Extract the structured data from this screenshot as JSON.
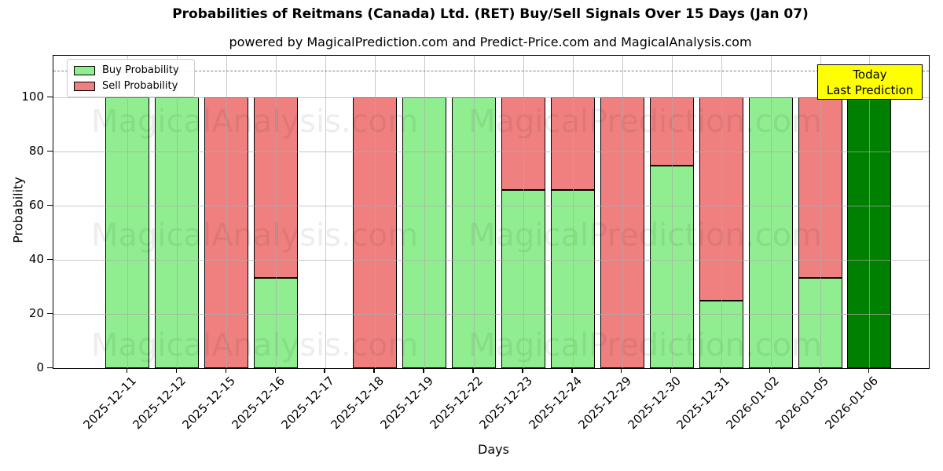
{
  "annotation": {
    "line1": "Today",
    "line2": "Last Prediction",
    "bg_color": "#ffff00"
  },
  "watermarks": {
    "left_text": "MagicalAnalysis.com",
    "right_text": "MagicalPrediction.com"
  },
  "chart_data": {
    "type": "bar",
    "stacked": true,
    "title": "Probabilities of Reitmans (Canada) Ltd. (RET) Buy/Sell Signals Over 15 Days (Jan 07)",
    "subtitle": "powered by MagicalPrediction.com and Predict-Price.com and MagicalAnalysis.com",
    "xlabel": "Days",
    "ylabel": "Probability",
    "categories": [
      "2025-12-11",
      "2025-12-12",
      "2025-12-15",
      "2025-12-16",
      "2025-12-17",
      "2025-12-18",
      "2025-12-19",
      "2025-12-22",
      "2025-12-23",
      "2025-12-24",
      "2025-12-29",
      "2025-12-30",
      "2025-12-31",
      "2026-01-02",
      "2026-01-05",
      "2026-01-06"
    ],
    "series": [
      {
        "name": "Buy Probability",
        "color": "#90EE90",
        "values": [
          100,
          100,
          0,
          33.3,
          0,
          0,
          100,
          100,
          66,
          66,
          0,
          75,
          25,
          100,
          33.3,
          0
        ]
      },
      {
        "name": "Sell Probability",
        "color": "#F08080",
        "values": [
          0,
          0,
          100,
          66.7,
          0,
          100,
          0,
          0,
          34,
          34,
          100,
          25,
          75,
          0,
          66.7,
          0
        ]
      },
      {
        "name": "Last Prediction (Today)",
        "color": "#008000",
        "values": [
          0,
          0,
          0,
          0,
          0,
          0,
          0,
          0,
          0,
          0,
          0,
          0,
          0,
          0,
          0,
          100
        ]
      }
    ],
    "yticks": [
      0,
      20,
      40,
      60,
      80,
      100
    ],
    "ylim": [
      0,
      115.5
    ],
    "dashed_line_y": 110,
    "grid": true,
    "legend_position": "upper left",
    "bar_edge_color": "#000000",
    "grid_color": "#aaaaaa",
    "dashed_line_color": "#7f7f7f"
  }
}
